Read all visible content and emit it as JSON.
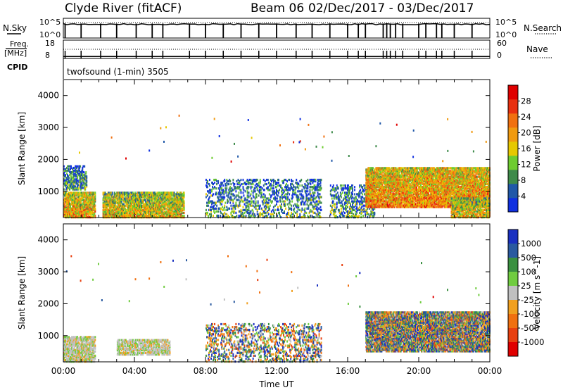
{
  "header": {
    "station": "Clyde River (fitACF)",
    "beam": "Beam 06",
    "date_range": "02/Dec/2017 - 03/Dec/2017"
  },
  "chart_data": [
    {
      "type": "line",
      "panel": "noise",
      "left_label": "N.Sky",
      "right_label": "N.Search",
      "left_ticks": [
        "10^5",
        "10^0"
      ],
      "right_ticks": [
        "10^5",
        "10^0"
      ],
      "x_range_hours": [
        0,
        24
      ],
      "series": [
        {
          "name": "N.Sky",
          "style": "solid",
          "level": 0.7
        },
        {
          "name": "N.Search",
          "style": "dotted",
          "level": 0.7
        }
      ],
      "dropout_hours": [
        0.1,
        1.0,
        2.1,
        3.0,
        4.1,
        5.0,
        5.6,
        7.1,
        8.0,
        9.0,
        10.0,
        11.0,
        12.0,
        13.1,
        14.0,
        15.0,
        16.0,
        16.6,
        17.0,
        18.0,
        18.2,
        18.4,
        18.7,
        19.1,
        20.0,
        20.4,
        21.0,
        21.3,
        22.0,
        23.0
      ]
    },
    {
      "type": "line",
      "panel": "frequency",
      "left_label": "Freq.",
      "left_unit": "[MHz]",
      "right_label": "Nave",
      "left_ticks": [
        "18",
        "8"
      ],
      "right_ticks": [
        "60",
        "0"
      ],
      "x_range_hours": [
        0,
        24
      ],
      "series": [
        {
          "name": "Freq.",
          "style": "solid",
          "values_mhz": [
            10.2
          ]
        },
        {
          "name": "Nave",
          "style": "dotted",
          "values": [
            30
          ]
        }
      ]
    },
    {
      "type": "text",
      "panel": "cpid",
      "label": "CPID",
      "text": "twofsound (1-min) 3505"
    },
    {
      "type": "heatmap",
      "panel": "power",
      "ylabel": "Slant Range [km]",
      "xlabel": "",
      "colorbar_label": "Power [dB]",
      "y_ticks": [
        1000,
        2000,
        3000,
        4000
      ],
      "ylim": [
        180,
        4500
      ],
      "x_range_hours": [
        0,
        24
      ],
      "colorbar_ticks": [
        "4",
        "8",
        "12",
        "16",
        "20",
        "24",
        "28"
      ],
      "colorbar_range": [
        0,
        32
      ],
      "colorbar_colors": [
        "#1030e0",
        "#2058a8",
        "#3e8a4a",
        "#6ecc30",
        "#e6c800",
        "#f09a10",
        "#f07010",
        "#e83010",
        "#e00000"
      ],
      "scatter_regions": [
        {
          "hours": [
            0.0,
            1.8
          ],
          "range_km": [
            180,
            1000
          ],
          "density": 0.8,
          "mean_db": 20
        },
        {
          "hours": [
            0.0,
            1.3
          ],
          "range_km": [
            1050,
            1800
          ],
          "density": 0.5,
          "mean_db": 10
        },
        {
          "hours": [
            2.2,
            6.8
          ],
          "range_km": [
            180,
            1000
          ],
          "density": 0.75,
          "mean_db": 18
        },
        {
          "hours": [
            8.0,
            14.5
          ],
          "range_km": [
            180,
            1400
          ],
          "density": 0.25,
          "mean_db": 10
        },
        {
          "hours": [
            15.0,
            17.5
          ],
          "range_km": [
            180,
            1200
          ],
          "density": 0.3,
          "mean_db": 10
        },
        {
          "hours": [
            17.0,
            24.0
          ],
          "range_km": [
            500,
            1750
          ],
          "density": 0.8,
          "mean_db": 22
        },
        {
          "hours": [
            21.8,
            24.0
          ],
          "range_km": [
            180,
            800
          ],
          "density": 0.7,
          "mean_db": 18
        }
      ]
    },
    {
      "type": "heatmap",
      "panel": "velocity",
      "ylabel": "Slant Range [km]",
      "xlabel": "Time UT",
      "colorbar_label": "Velocity [m s^-1]",
      "y_ticks": [
        1000,
        2000,
        3000,
        4000
      ],
      "ylim": [
        180,
        4500
      ],
      "x_ticks": [
        "00:00",
        "04:00",
        "08:00",
        "12:00",
        "16:00",
        "20:00",
        "00:00"
      ],
      "x_tick_hours": [
        0,
        4,
        8,
        12,
        16,
        20,
        24
      ],
      "x_range_hours": [
        0,
        24
      ],
      "colorbar_ticks": [
        "1000",
        "500",
        "100",
        "25",
        "-25",
        "-100",
        "-500",
        "-1000"
      ],
      "colorbar_colors": [
        "#1a30c0",
        "#2a5aa0",
        "#3a9040",
        "#70cc40",
        "#c0c0c0",
        "#f0a020",
        "#f07010",
        "#e84010",
        "#e00000"
      ],
      "scatter_regions": [
        {
          "hours": [
            0.0,
            1.8
          ],
          "range_km": [
            180,
            1000
          ],
          "density": 0.7,
          "class": "ground"
        },
        {
          "hours": [
            3.0,
            6.0
          ],
          "range_km": [
            400,
            900
          ],
          "density": 0.6,
          "class": "ground"
        },
        {
          "hours": [
            8.0,
            14.5
          ],
          "range_km": [
            180,
            1400
          ],
          "density": 0.25,
          "class": "mixed"
        },
        {
          "hours": [
            17.0,
            24.0
          ],
          "range_km": [
            500,
            1750
          ],
          "density": 0.8,
          "class": "mixed"
        }
      ]
    }
  ]
}
